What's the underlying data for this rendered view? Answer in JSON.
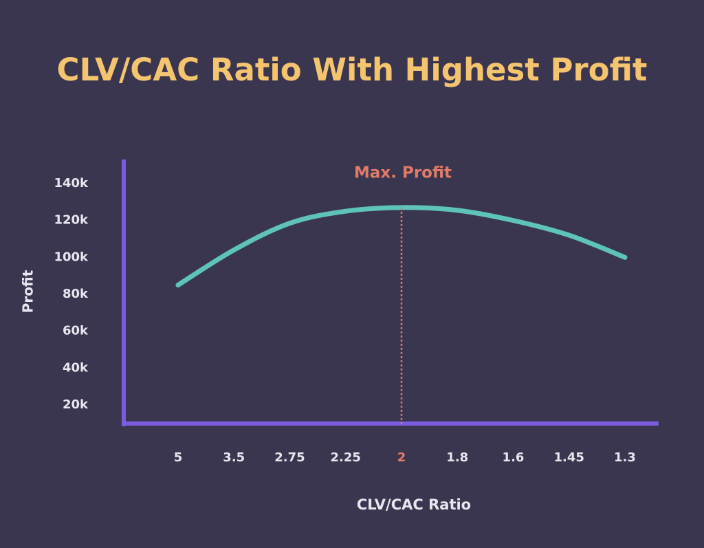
{
  "chart_data": {
    "type": "line",
    "title": "CLV/CAC Ratio With Highest Profit",
    "xlabel": "CLV/CAC Ratio",
    "ylabel": "Profit",
    "categories": [
      "5",
      "3.5",
      "2.75",
      "2.25",
      "2",
      "1.8",
      "1.6",
      "1.45",
      "1.3"
    ],
    "series": [
      {
        "name": "Profit",
        "color": "#5ec4bb",
        "values": [
          85000,
          104000,
          118500,
          125000,
          127000,
          125500,
          120000,
          112000,
          100000
        ]
      }
    ],
    "ylim": [
      10000,
      153000
    ],
    "yticks": [
      {
        "value": 20000,
        "label": "20k"
      },
      {
        "value": 40000,
        "label": "40k"
      },
      {
        "value": 60000,
        "label": "60k"
      },
      {
        "value": 80000,
        "label": "80k"
      },
      {
        "value": 100000,
        "label": "100k"
      },
      {
        "value": 120000,
        "label": "120k"
      },
      {
        "value": 140000,
        "label": "140k"
      }
    ],
    "grid": false,
    "title_color": "#f5c46e",
    "axis_color": "#7b5ce0",
    "annotation": {
      "text": "Max. Profit",
      "color": "#e07b67",
      "category_index": 4
    }
  }
}
